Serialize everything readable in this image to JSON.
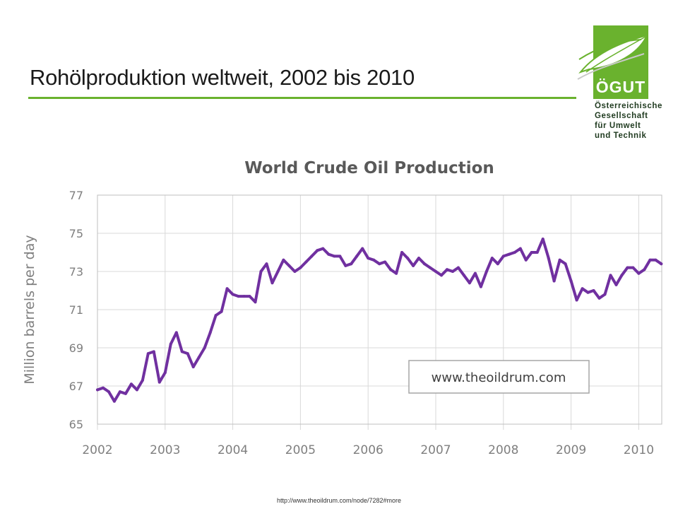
{
  "slide": {
    "title": "Rohölproduktion weltweit, 2002 bis 2010",
    "source_url": "http://www.theoildrum.com/node/7282#more"
  },
  "logo": {
    "word": "ÖGUT",
    "lines": [
      "Österreichische",
      "Gesellschaft",
      "für Umwelt",
      "und Technik"
    ]
  },
  "colors": {
    "accent": "#6ab22e",
    "series": "#7030a0",
    "grid": "#d9d9d9",
    "axis_text": "#7f7f7f"
  },
  "chart_data": {
    "type": "line",
    "title": "World Crude Oil Production",
    "ylabel": "Million barrels per day",
    "xlabel": "",
    "watermark": "www.theoildrum.com",
    "ylim": [
      65,
      77
    ],
    "yticks": [
      "65",
      "67",
      "69",
      "71",
      "73",
      "75",
      "77"
    ],
    "xlim": [
      "2002-01",
      "2010-05"
    ],
    "xticks": [
      "2002",
      "2003",
      "2004",
      "2005",
      "2006",
      "2007",
      "2008",
      "2009",
      "2010"
    ],
    "grid": true,
    "legend": "none",
    "series": [
      {
        "x": [
          "2002-01",
          "2002-02",
          "2002-03",
          "2002-04",
          "2002-05",
          "2002-06",
          "2002-07",
          "2002-08",
          "2002-09",
          "2002-10",
          "2002-11",
          "2002-12",
          "2003-01",
          "2003-02",
          "2003-03",
          "2003-04",
          "2003-05",
          "2003-06",
          "2003-07",
          "2003-08",
          "2003-09",
          "2003-10",
          "2003-11",
          "2003-12",
          "2004-01",
          "2004-02",
          "2004-03",
          "2004-04",
          "2004-05",
          "2004-06",
          "2004-07",
          "2004-08",
          "2004-09",
          "2004-10",
          "2004-11",
          "2004-12",
          "2005-01",
          "2005-02",
          "2005-03",
          "2005-04",
          "2005-05",
          "2005-06",
          "2005-07",
          "2005-08",
          "2005-09",
          "2005-10",
          "2005-11",
          "2005-12",
          "2006-01",
          "2006-02",
          "2006-03",
          "2006-04",
          "2006-05",
          "2006-06",
          "2006-07",
          "2006-08",
          "2006-09",
          "2006-10",
          "2006-11",
          "2006-12",
          "2007-01",
          "2007-02",
          "2007-03",
          "2007-04",
          "2007-05",
          "2007-06",
          "2007-07",
          "2007-08",
          "2007-09",
          "2007-10",
          "2007-11",
          "2007-12",
          "2008-01",
          "2008-02",
          "2008-03",
          "2008-04",
          "2008-05",
          "2008-06",
          "2008-07",
          "2008-08",
          "2008-09",
          "2008-10",
          "2008-11",
          "2008-12",
          "2009-01",
          "2009-02",
          "2009-03",
          "2009-04",
          "2009-05",
          "2009-06",
          "2009-07",
          "2009-08",
          "2009-09",
          "2009-10",
          "2009-11",
          "2009-12",
          "2010-01",
          "2010-02",
          "2010-03",
          "2010-04",
          "2010-05"
        ],
        "values": [
          66.8,
          66.9,
          66.7,
          66.2,
          66.7,
          66.6,
          67.1,
          66.8,
          67.3,
          68.7,
          68.8,
          67.2,
          67.7,
          69.2,
          69.8,
          68.8,
          68.7,
          68.0,
          68.5,
          69.0,
          69.8,
          70.7,
          70.9,
          72.1,
          71.8,
          71.7,
          71.7,
          71.7,
          71.4,
          73.0,
          73.4,
          72.4,
          73.0,
          73.6,
          73.3,
          73.0,
          73.2,
          73.5,
          73.8,
          74.1,
          74.2,
          73.9,
          73.8,
          73.8,
          73.3,
          73.4,
          73.8,
          74.2,
          73.7,
          73.6,
          73.4,
          73.5,
          73.1,
          72.9,
          74.0,
          73.7,
          73.3,
          73.7,
          73.4,
          73.2,
          73.0,
          72.8,
          73.1,
          73.0,
          73.2,
          72.8,
          72.4,
          72.9,
          72.2,
          73.0,
          73.7,
          73.4,
          73.8,
          73.9,
          74.0,
          74.2,
          73.6,
          74.0,
          74.0,
          74.7,
          73.7,
          72.5,
          73.6,
          73.4,
          72.5,
          71.5,
          72.1,
          71.9,
          72.0,
          71.6,
          71.8,
          72.8,
          72.3,
          72.8,
          73.2,
          73.2,
          72.9,
          73.1,
          73.6,
          73.6,
          73.4
        ]
      }
    ]
  }
}
